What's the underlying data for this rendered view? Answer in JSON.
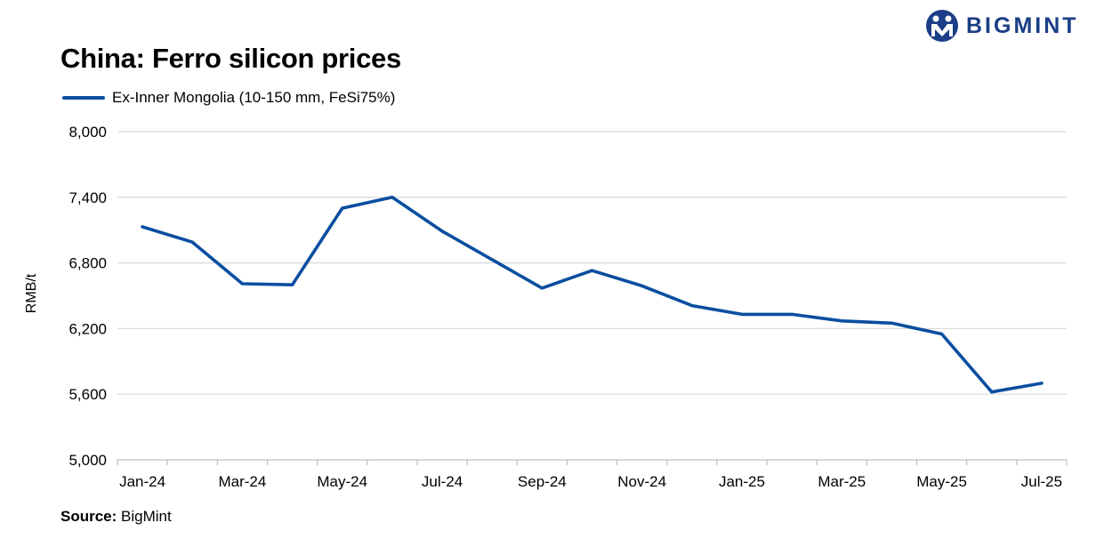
{
  "header": {
    "title": "China: Ferro silicon prices",
    "brand": "BIGMINT"
  },
  "footer": {
    "source_label": "Source:",
    "source_value": "BigMint"
  },
  "colors": {
    "series": "#0A4EA0",
    "grid": "#D9D9D9",
    "axis": "#BFBFBF"
  },
  "chart_data": {
    "type": "line",
    "title": "China: Ferro silicon prices",
    "xlabel": "",
    "ylabel": "RMB/t",
    "ylim": [
      5000,
      8000
    ],
    "yticks": [
      "5,000",
      "5,600",
      "6,200",
      "6,800",
      "7,400",
      "8,000"
    ],
    "ytick_values": [
      5000,
      5600,
      6200,
      6800,
      7400,
      8000
    ],
    "categories": [
      "Jan-24",
      "Feb-24",
      "Mar-24",
      "Apr-24",
      "May-24",
      "Jun-24",
      "Jul-24",
      "Aug-24",
      "Sep-24",
      "Oct-24",
      "Nov-24",
      "Dec-24",
      "Jan-25",
      "Feb-25",
      "Mar-25",
      "Apr-25",
      "May-25",
      "Jun-25",
      "Jul-25"
    ],
    "xtick_labels": [
      "Jan-24",
      "",
      "Mar-24",
      "",
      "May-24",
      "",
      "Jul-24",
      "",
      "Sep-24",
      "",
      "Nov-24",
      "",
      "Jan-25",
      "",
      "Mar-25",
      "",
      "May-25",
      "",
      "Jul-25"
    ],
    "legend_position": "top-left",
    "grid": true,
    "series": [
      {
        "name": "Ex-Inner Mongolia (10-150 mm, FeSi75%)",
        "x": [
          "Jan-24",
          "Feb-24",
          "Mar-24",
          "Apr-24",
          "May-24",
          "Jun-24",
          "Jul-24",
          "Aug-24",
          "Sep-24",
          "Oct-24",
          "Nov-24",
          "Dec-24",
          "Jan-25",
          "Feb-25",
          "Mar-25",
          "Apr-25",
          "May-25",
          "Jun-25",
          "Jul-25"
        ],
        "values": [
          7130,
          6990,
          6610,
          6600,
          7300,
          7400,
          7090,
          6830,
          6570,
          6730,
          6590,
          6410,
          6330,
          6330,
          6270,
          6250,
          6150,
          5620,
          5700
        ]
      }
    ]
  }
}
